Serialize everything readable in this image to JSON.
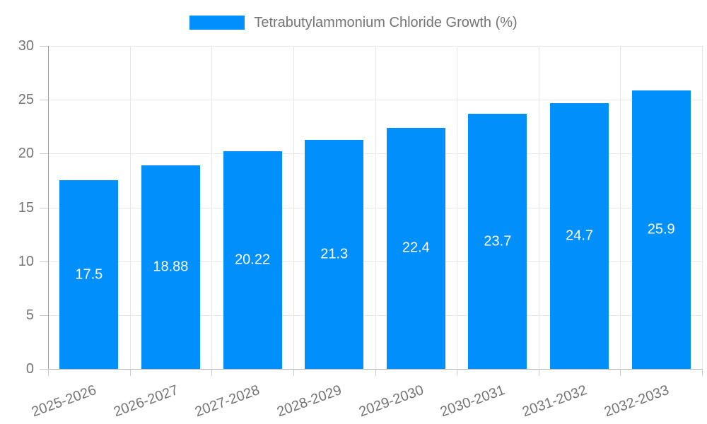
{
  "legend": {
    "label": "Tetrabutylammonium Chloride Growth (%)",
    "swatch_color": "#008FFB"
  },
  "chart_data": {
    "type": "bar",
    "title": "Tetrabutylammonium Chloride Growth (%)",
    "categories": [
      "2025-2026",
      "2026-2027",
      "2027-2028",
      "2028-2029",
      "2029-2030",
      "2030-2031",
      "2031-2032",
      "2032-2033"
    ],
    "values": [
      17.5,
      18.88,
      20.22,
      21.3,
      22.4,
      23.7,
      24.7,
      25.9
    ],
    "value_labels": [
      "17.5",
      "18.88",
      "20.22",
      "21.3",
      "22.4",
      "23.7",
      "24.7",
      "25.9"
    ],
    "xlabel": "",
    "ylabel": "",
    "ylim": [
      0,
      30
    ],
    "y_ticks": [
      0,
      5,
      10,
      15,
      20,
      25,
      30
    ],
    "y_tick_labels": [
      "0",
      "5",
      "10",
      "15",
      "20",
      "25",
      "30"
    ],
    "grid": true,
    "legend_position": "top",
    "bar_color": "#008FFB",
    "value_label_color": "#ffffff",
    "axis_text_color": "#757575",
    "x_label_rotation_deg": -20
  }
}
